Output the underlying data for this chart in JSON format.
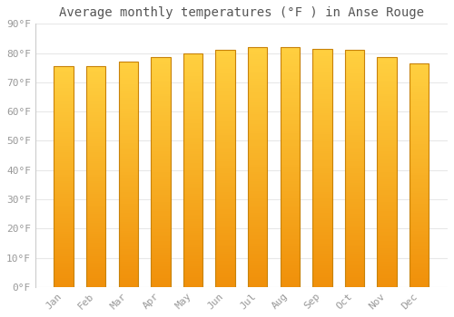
{
  "title": "Average monthly temperatures (°F ) in Anse Rouge",
  "months": [
    "Jan",
    "Feb",
    "Mar",
    "Apr",
    "May",
    "Jun",
    "Jul",
    "Aug",
    "Sep",
    "Oct",
    "Nov",
    "Dec"
  ],
  "values": [
    75.5,
    75.5,
    77.0,
    78.5,
    80.0,
    81.0,
    82.0,
    82.0,
    81.5,
    81.0,
    78.5,
    76.5
  ],
  "bar_color_top": "#FFD040",
  "bar_color_bottom": "#F0900A",
  "bar_edge_color": "#C8820A",
  "background_color": "#FFFFFF",
  "plot_bg_color": "#FFFFFF",
  "grid_color": "#E8E8E8",
  "text_color": "#999999",
  "title_color": "#555555",
  "ylim": [
    0,
    90
  ],
  "yticks": [
    0,
    10,
    20,
    30,
    40,
    50,
    60,
    70,
    80,
    90
  ],
  "ytick_labels": [
    "0°F",
    "10°F",
    "20°F",
    "30°F",
    "40°F",
    "50°F",
    "60°F",
    "70°F",
    "80°F",
    "90°F"
  ],
  "title_fontsize": 10,
  "tick_fontsize": 8,
  "font_family": "monospace",
  "bar_width": 0.6
}
